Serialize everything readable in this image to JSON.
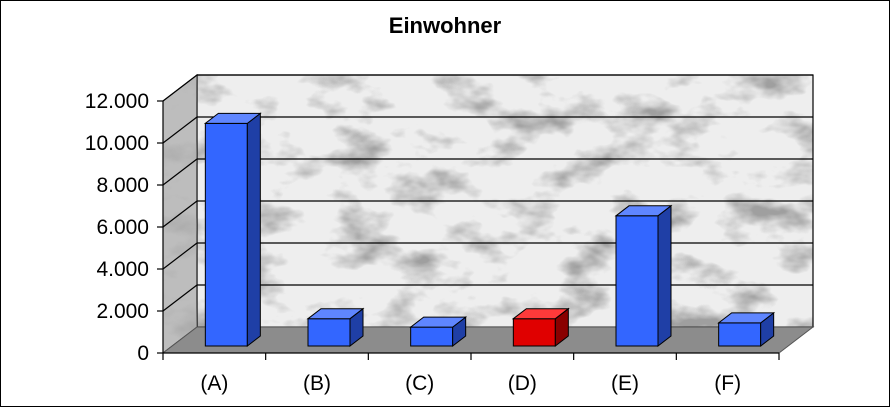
{
  "chart_data": {
    "type": "bar",
    "title": "Einwohner",
    "xlabel": "",
    "ylabel": "",
    "categories": [
      "(A)",
      "(B)",
      "(C)",
      "(D)",
      "(E)",
      "(F)"
    ],
    "values": [
      10600,
      1300,
      900,
      1300,
      6200,
      1100
    ],
    "highlight_category": "(D)",
    "ylim": [
      0,
      12000
    ],
    "y_ticks": [
      0,
      2000,
      4000,
      6000,
      8000,
      10000,
      12000
    ],
    "y_tick_labels": [
      "0",
      "2.000",
      "4.000",
      "6.000",
      "8.000",
      "10.000",
      "12.000"
    ],
    "grid": true,
    "legend": "none",
    "style": "3d-column",
    "colors": {
      "bar": "#3366ff",
      "bar_side": "#1f3fa6",
      "bar_top": "#5f86ff",
      "highlight": "#e00000",
      "highlight_side": "#8a0000",
      "highlight_top": "#ff3a3a",
      "floor": "#8c8c8c",
      "wall": "#eeeeee"
    }
  }
}
